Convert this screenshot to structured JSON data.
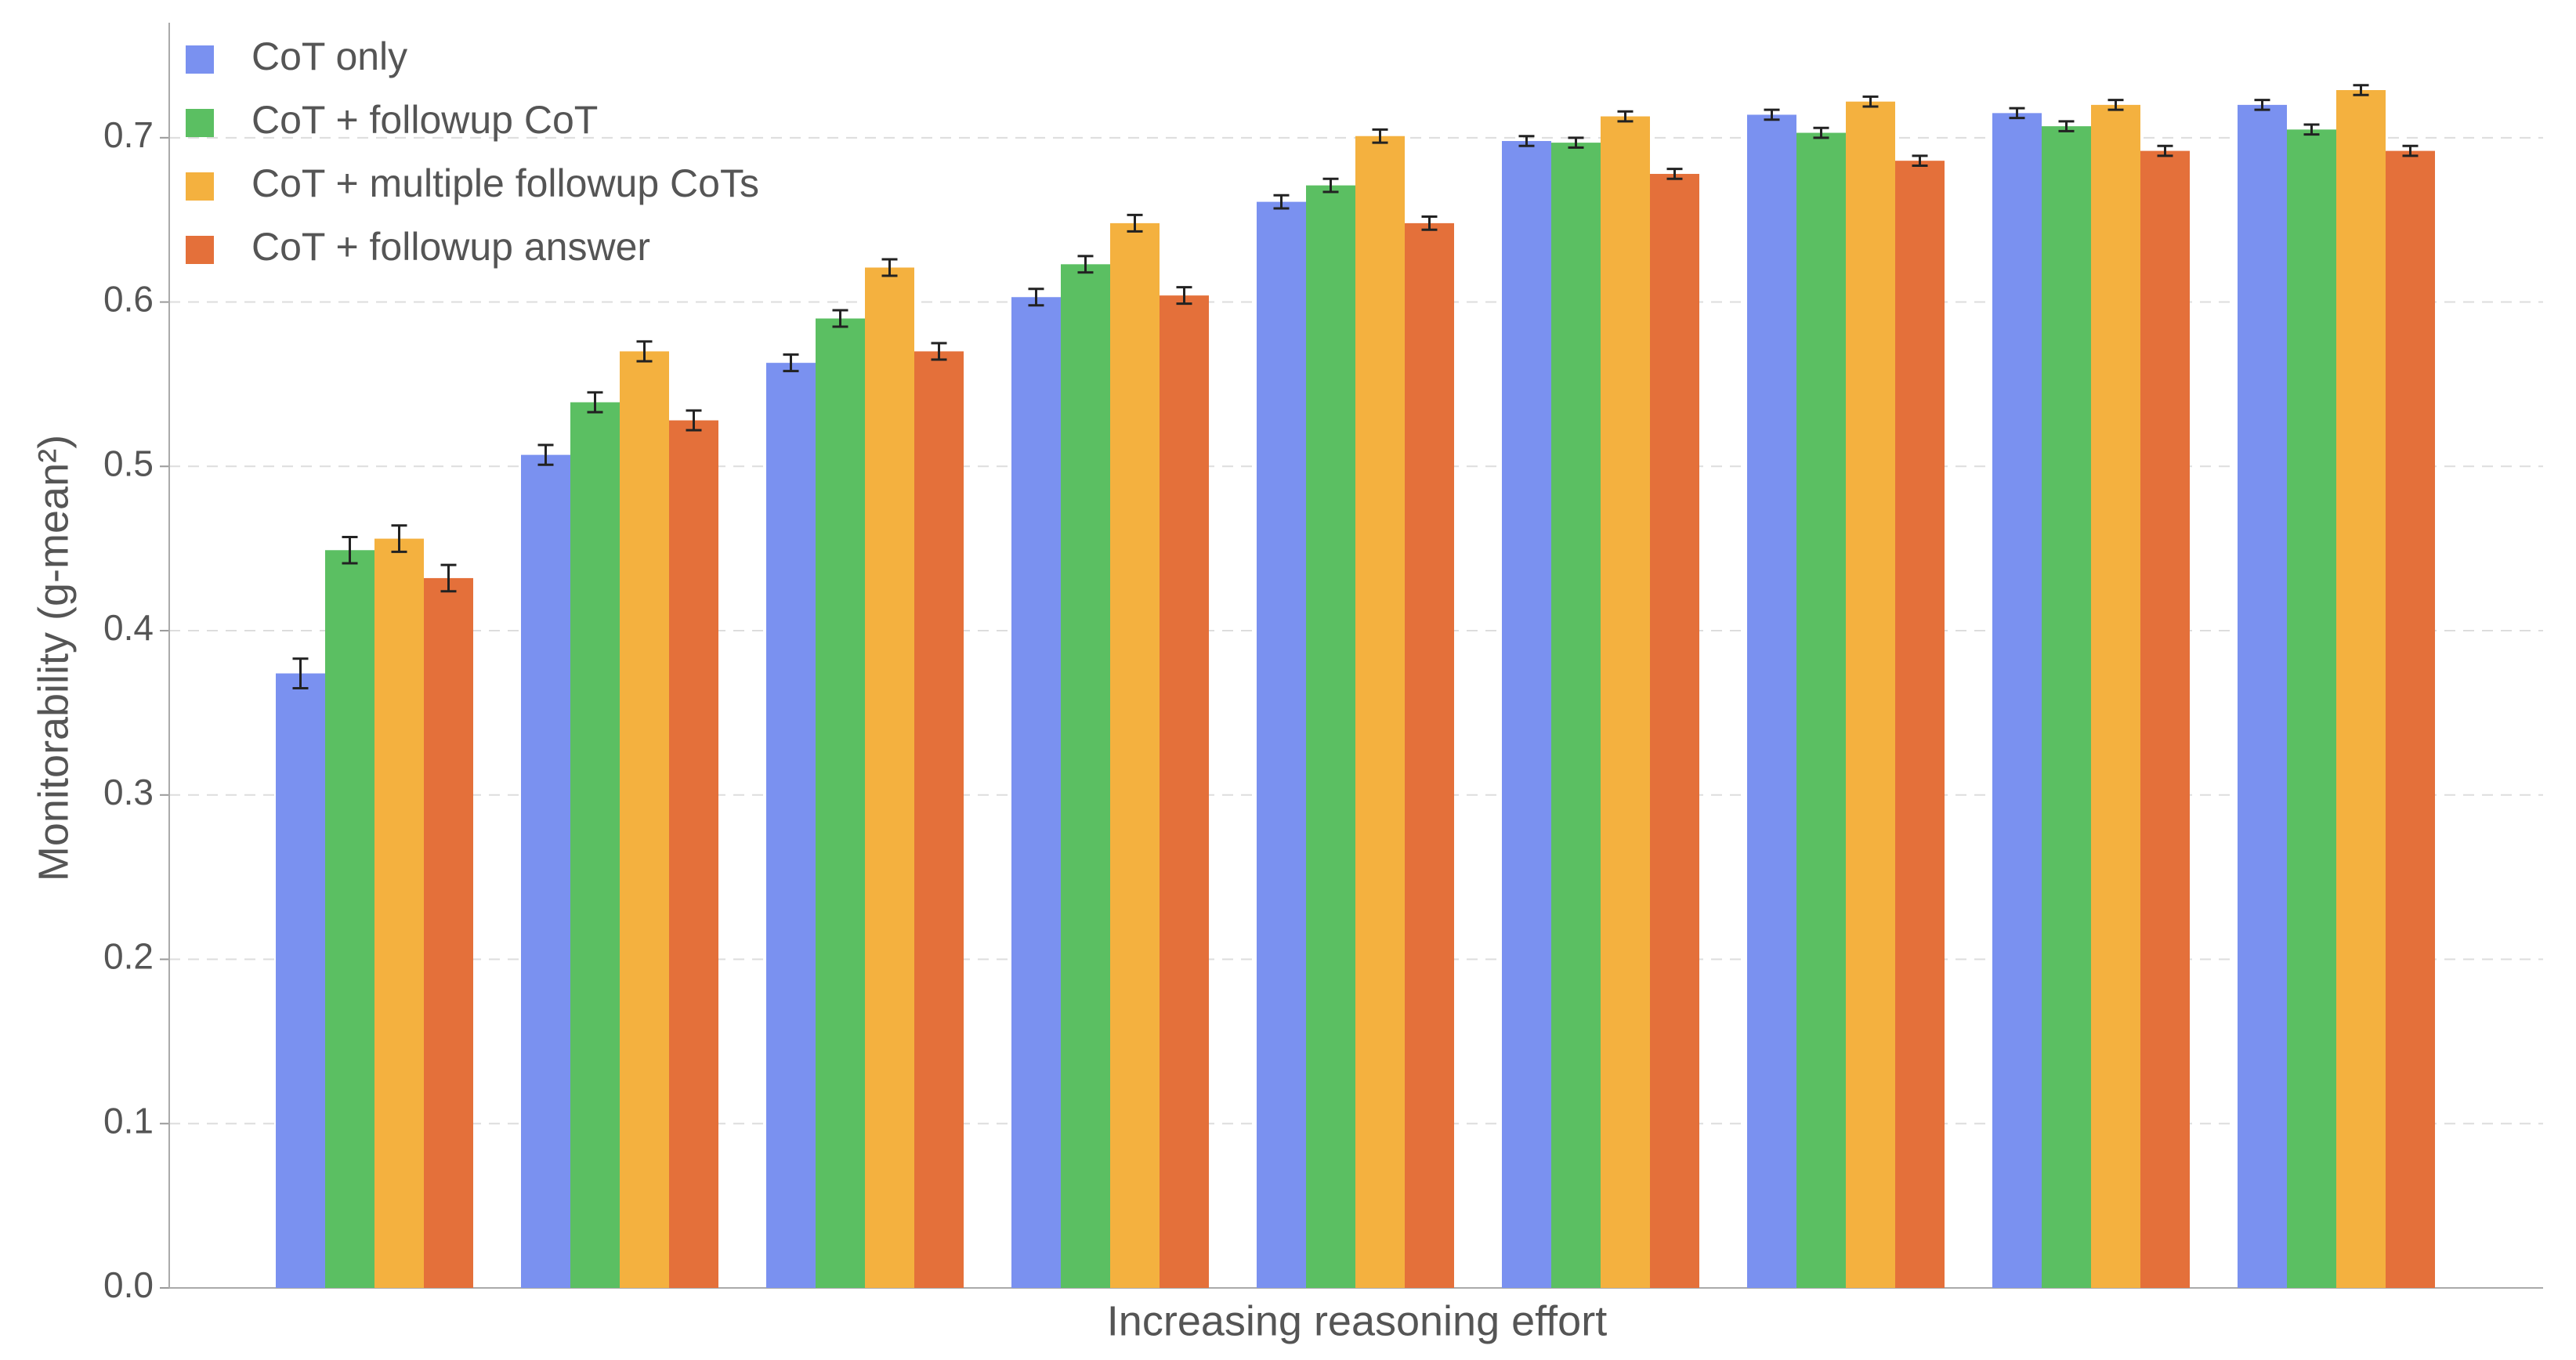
{
  "chart_data": {
    "type": "bar",
    "x_label": "Increasing reasoning effort",
    "y_label": "Monitorability (g-mean²)",
    "categories": [
      null,
      null,
      null,
      null,
      null,
      null,
      null,
      null,
      null
    ],
    "series": [
      {
        "name": "CoT only",
        "color": "#7a91f0",
        "values": [
          0.374,
          0.507,
          0.563,
          0.603,
          0.661,
          0.698,
          0.714,
          0.715,
          0.72
        ],
        "errors": [
          0.009,
          0.006,
          0.005,
          0.005,
          0.004,
          0.003,
          0.003,
          0.003,
          0.003
        ]
      },
      {
        "name": "CoT + followup CoT",
        "color": "#5bbf62",
        "values": [
          0.449,
          0.539,
          0.59,
          0.623,
          0.671,
          0.697,
          0.703,
          0.707,
          0.705
        ],
        "errors": [
          0.008,
          0.006,
          0.005,
          0.005,
          0.004,
          0.003,
          0.003,
          0.003,
          0.003
        ]
      },
      {
        "name": "CoT + multiple followup CoTs",
        "color": "#f4b13f",
        "values": [
          0.456,
          0.57,
          0.621,
          0.648,
          0.701,
          0.713,
          0.722,
          0.72,
          0.729
        ],
        "errors": [
          0.008,
          0.006,
          0.005,
          0.005,
          0.004,
          0.003,
          0.003,
          0.003,
          0.003
        ]
      },
      {
        "name": "CoT + followup answer",
        "color": "#e4703a",
        "values": [
          0.432,
          0.528,
          0.57,
          0.604,
          0.648,
          0.678,
          0.686,
          0.692,
          0.692
        ],
        "errors": [
          0.008,
          0.006,
          0.005,
          0.005,
          0.004,
          0.003,
          0.003,
          0.003,
          0.003
        ]
      }
    ],
    "ylim": [
      0,
      0.77
    ],
    "yticks": [
      {
        "value": 0,
        "label": "0.0"
      },
      0.1,
      0.2,
      0.3,
      0.4,
      0.5,
      0.6,
      0.7
    ],
    "grid": true,
    "legend": "upper-left"
  }
}
